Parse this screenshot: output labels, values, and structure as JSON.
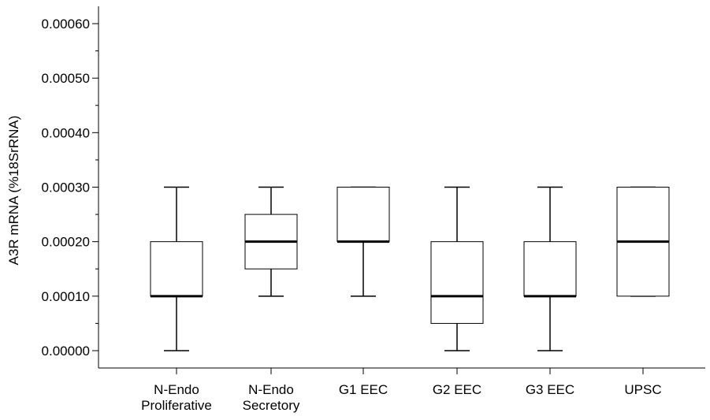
{
  "chart_data": {
    "type": "boxplot",
    "title": "",
    "xlabel": "",
    "ylabel": "A3R mRNA (%18SrRNA)",
    "ylim": [
      0,
      0.0006
    ],
    "yticks": [
      "0.00000",
      "0.00010",
      "0.00020",
      "0.00030",
      "0.00040",
      "0.00050",
      "0.00060"
    ],
    "ytick_values": [
      0,
      0.0001,
      0.0002,
      0.0003,
      0.0004,
      0.0005,
      0.0006
    ],
    "grid": false,
    "categories": [
      [
        "N-Endo",
        "Proliferative"
      ],
      [
        "N-Endo",
        "Secretory"
      ],
      [
        "G1 EEC"
      ],
      [
        "G2 EEC"
      ],
      [
        "G3 EEC"
      ],
      [
        "UPSC"
      ]
    ],
    "boxes": [
      {
        "whisker_low": 0.0,
        "q1": 0.0001,
        "median": 0.0001,
        "q3": 0.0002,
        "whisker_high": 0.0003
      },
      {
        "whisker_low": 0.0001,
        "q1": 0.00015,
        "median": 0.0002,
        "q3": 0.00025,
        "whisker_high": 0.0003
      },
      {
        "whisker_low": 0.0001,
        "q1": 0.0002,
        "median": 0.0002,
        "q3": 0.0003,
        "whisker_high": 0.0003
      },
      {
        "whisker_low": 0.0,
        "q1": 5e-05,
        "median": 0.0001,
        "q3": 0.0002,
        "whisker_high": 0.0003
      },
      {
        "whisker_low": 0.0,
        "q1": 0.0001,
        "median": 0.0001,
        "q3": 0.0002,
        "whisker_high": 0.0003
      },
      {
        "whisker_low": 0.0001,
        "q1": 0.0001,
        "median": 0.0002,
        "q3": 0.0003,
        "whisker_high": 0.0003
      }
    ],
    "colors": {
      "box_fill": "#ffffff",
      "stroke": "#000000"
    }
  }
}
